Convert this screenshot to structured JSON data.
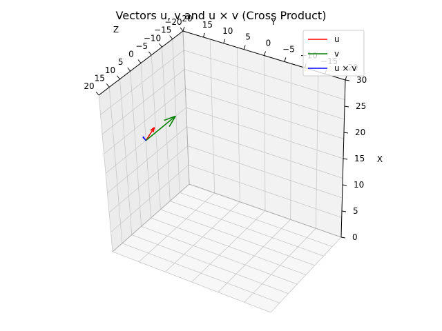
{
  "chart_data": {
    "type": "line",
    "title": "Vectors u, v and u × v (Cross Product)",
    "projection": "3d",
    "axes": {
      "x": {
        "label": "X",
        "ticks": [
          "0",
          "5",
          "10",
          "15",
          "20",
          "25",
          "30"
        ],
        "lim": [
          0,
          30
        ]
      },
      "y": {
        "label": "Y",
        "ticks": [
          "20",
          "15",
          "10",
          "5",
          "0",
          "−5",
          "−10",
          "−15",
          "−20"
        ],
        "lim": [
          -20,
          20
        ]
      },
      "z": {
        "label": "Z",
        "ticks": [
          "20",
          "15",
          "10",
          "5",
          "0",
          "−5",
          "−10",
          "−15",
          "−20"
        ],
        "lim": [
          -20,
          20
        ]
      }
    },
    "grid": true,
    "legend": {
      "placement": "top-right",
      "entries": [
        "u",
        "v",
        "u × v"
      ]
    },
    "series": [
      {
        "name": "u",
        "color": "#ff0000",
        "start": [
          0,
          0,
          0
        ],
        "end": [
          1,
          2,
          3
        ]
      },
      {
        "name": "v",
        "color": "#008000",
        "start": [
          0,
          0,
          0
        ],
        "end": [
          4,
          5,
          6
        ]
      },
      {
        "name": "u × v",
        "color": "#0000ff",
        "start": [
          0,
          0,
          0
        ],
        "end": [
          -3,
          6,
          -3
        ]
      }
    ]
  }
}
